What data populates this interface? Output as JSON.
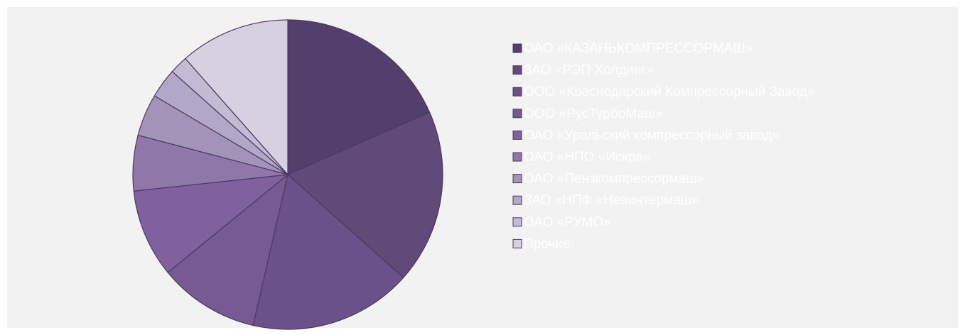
{
  "chart_data": {
    "type": "pie",
    "categories": [
      "ОАО «КАЗАНЬКОМПРЕССОРМАШ»",
      "ЗАО «РЭП Холдинг»",
      "ООО «Краснодарский Компрессорный Завод»",
      "ООО «РусТурбоМаш»",
      "ОАО «Уральский компрессорный завод»",
      "ОАО «НПО «Искра»",
      "ОАО «Пензкомпрессормаш»",
      "ЗАО «НПФ «Невинтермаш»",
      "ОАО «РУМО»",
      "Прочие"
    ],
    "values": [
      18.4,
      18.2,
      17,
      10.5,
      9.2,
      5.8,
      4.4,
      3.1,
      1.9,
      11.5
    ],
    "colors": [
      "#533f6b",
      "#5f4a7a",
      "#6b5189",
      "#755a93",
      "#7f619e",
      "#8f77aa",
      "#a393b9",
      "#b1a7c6",
      "#c3bad3",
      "#d6d0e0"
    ],
    "legend": "right"
  }
}
